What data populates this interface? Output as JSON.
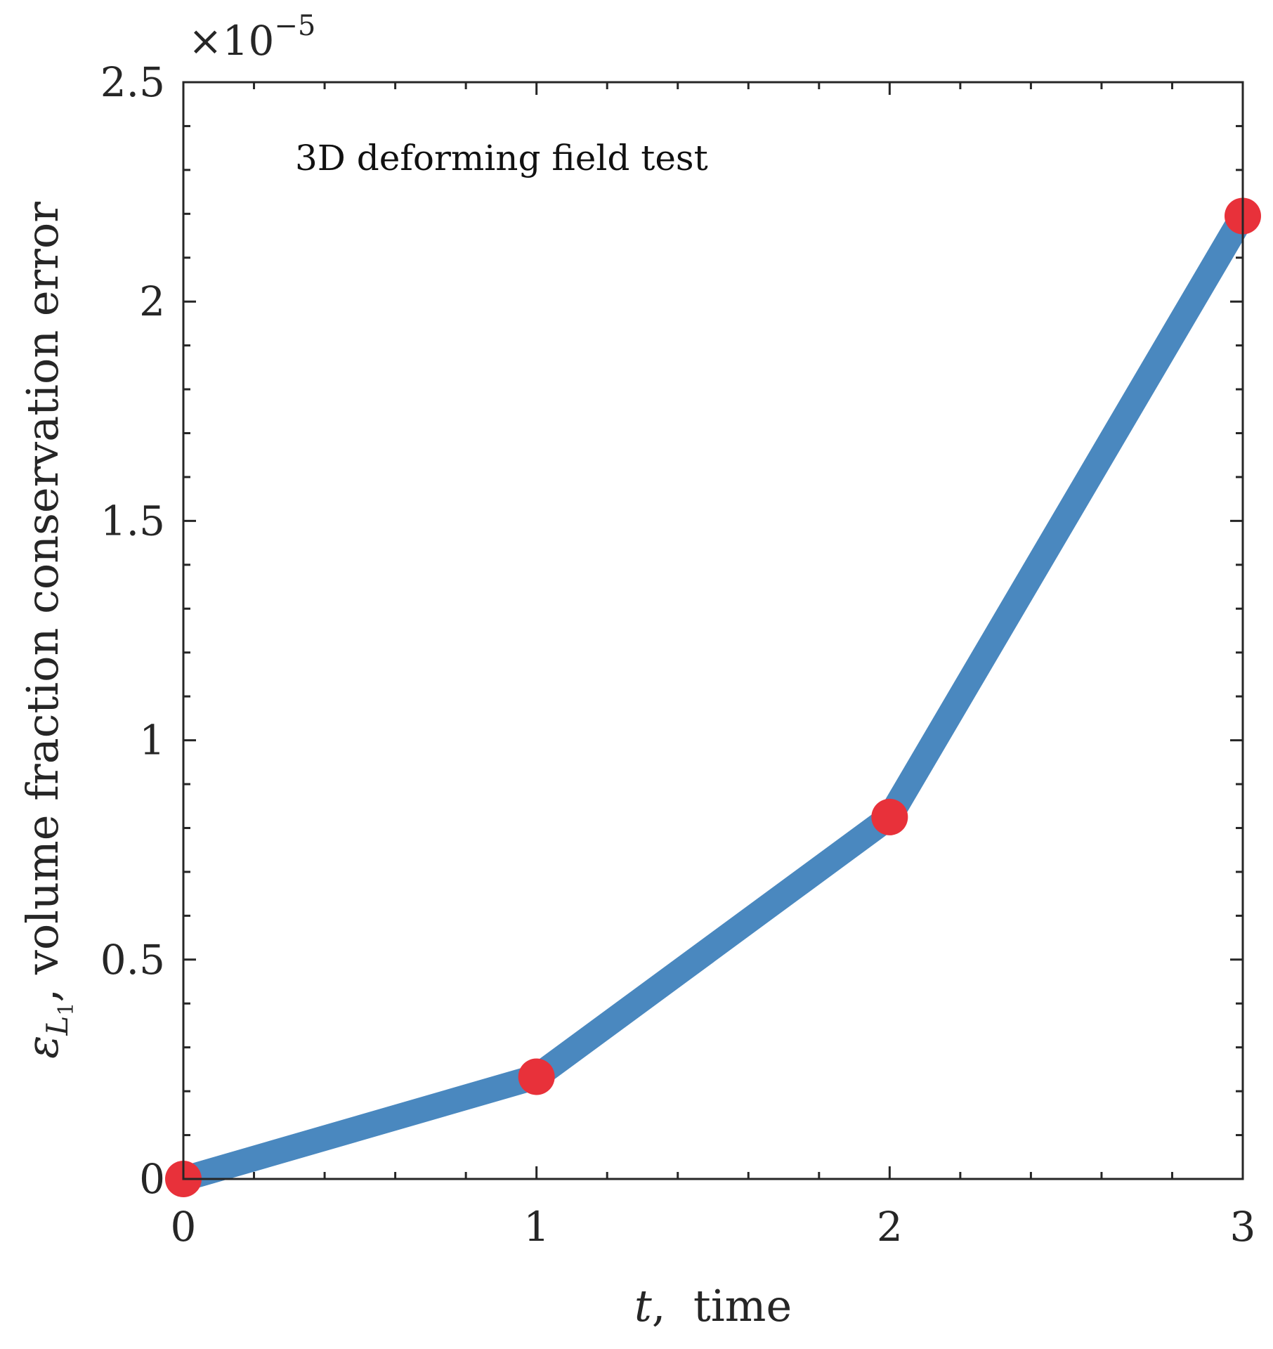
{
  "chart_data": {
    "type": "line",
    "title": "",
    "annotation": "3D deforming field test",
    "xlabel": {
      "var": "t",
      "rest": ",  time"
    },
    "ylabel": {
      "var": "ε",
      "sub": "L",
      "subsub": "1",
      "rest": ", volume fraction conservation error"
    },
    "y_exponent": {
      "base": "×10",
      "power": "−5"
    },
    "xlim": [
      0,
      3
    ],
    "ylim": [
      0,
      2.5
    ],
    "x_ticks": [
      0,
      1,
      2,
      3
    ],
    "x_tick_labels": [
      "0",
      "1",
      "2",
      "3"
    ],
    "y_ticks": [
      0,
      0.5,
      1,
      1.5,
      2,
      2.5
    ],
    "y_tick_labels": [
      "0",
      "0.5",
      "1",
      "1.5",
      "2",
      "2.5"
    ],
    "x_minor_step": 0.2,
    "y_minor_step": 0.1,
    "series": [
      {
        "name": "volume fraction conservation error",
        "x": [
          0,
          1,
          2,
          3
        ],
        "y": [
          0,
          0.233,
          0.825,
          2.195
        ]
      }
    ],
    "colors": {
      "line": "#4a88bf",
      "marker": "#e8313a",
      "axes": "#262626"
    }
  }
}
